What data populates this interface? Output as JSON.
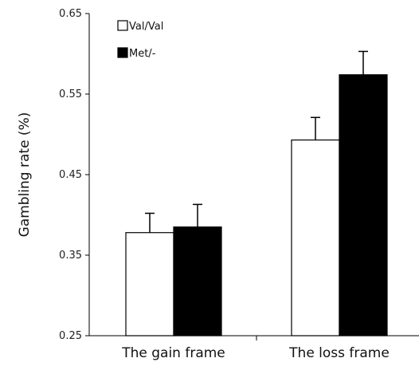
{
  "chart_data": {
    "type": "bar",
    "title": "",
    "xlabel": "",
    "ylabel": "Gambling rate (%)",
    "ylim": [
      0.25,
      0.65
    ],
    "yticks": [
      "0.25",
      "0.35",
      "0.45",
      "0.55",
      "0.65"
    ],
    "categories": [
      "The gain frame",
      "The loss frame"
    ],
    "series": [
      {
        "name": "Val/Val",
        "color": "#ffffff",
        "values": [
          0.378,
          0.493
        ],
        "error": [
          0.024,
          0.028
        ]
      },
      {
        "name": "Met/-",
        "color": "#000000",
        "values": [
          0.385,
          0.574
        ],
        "error": [
          0.028,
          0.029
        ]
      }
    ],
    "legend_position": "top-left",
    "grid": false
  }
}
